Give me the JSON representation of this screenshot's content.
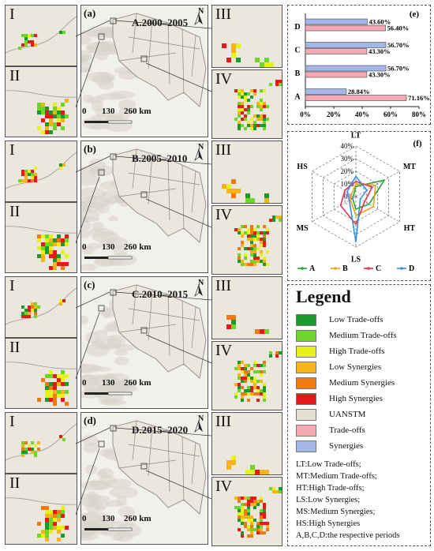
{
  "periods": [
    {
      "panel_letter": "(a)",
      "title": "A.2000–2005"
    },
    {
      "panel_letter": "(b)",
      "title": "B.2005–2010"
    },
    {
      "panel_letter": "(c)",
      "title": "C.2010–2015"
    },
    {
      "panel_letter": "(d)",
      "title": "D.2015–2020"
    }
  ],
  "insets": {
    "i": "I",
    "ii": "II",
    "iii": "III",
    "iv": "IV"
  },
  "north": "N",
  "scale": {
    "t0": "0",
    "t1": "130",
    "t2": "260 km"
  },
  "colors": {
    "low_tradeoffs": "#1a9a2a",
    "medium_tradeoffs": "#6ed62a",
    "high_tradeoffs": "#e6f21a",
    "low_synergies": "#f5b41a",
    "medium_synergies": "#f07a10",
    "high_synergies": "#e81818",
    "uanstm": "#e4e0d0",
    "tradeoffs": "#f4a9b4",
    "synergies": "#a3b8e8"
  },
  "legend": {
    "title": "Legend",
    "items": [
      {
        "label": "Low Trade-offs",
        "color": "#1a9a2a"
      },
      {
        "label": "Medium Trade-offs",
        "color": "#6ed62a"
      },
      {
        "label": "High Trade-offs",
        "color": "#e6f21a"
      },
      {
        "label": "Low Synergies",
        "color": "#f5b41a"
      },
      {
        "label": "Medium Synergies",
        "color": "#f07a10"
      },
      {
        "label": "High Synergies",
        "color": "#e81818"
      },
      {
        "label": "UANSTM",
        "color": "#e4e0d0"
      },
      {
        "label": "Trade-offs",
        "color": "#f4a9b4"
      },
      {
        "label": "Synergies",
        "color": "#a3b8e8"
      }
    ],
    "abbreviations": [
      "LT:Low Trade-offs;",
      "MT:Medium Trade-offs;",
      "HT:High Trade-offs;",
      "LS:Low Synergies;",
      "MS:Medium Synergies;",
      "HS:High Synergies",
      "A,B,C,D:the respective periods"
    ]
  },
  "chart_data": [
    {
      "type": "bar",
      "panel": "(e)",
      "orientation": "horizontal",
      "categories": [
        "D",
        "C",
        "B",
        "A"
      ],
      "series": [
        {
          "color": "#a3b8e8",
          "values": [
            43.6,
            56.7,
            56.7,
            28.84
          ],
          "labels": [
            "43.60%",
            "56.70%",
            "56.70%",
            "28.84%"
          ]
        },
        {
          "color": "#f4a9b4",
          "values": [
            56.4,
            43.3,
            43.3,
            71.16
          ],
          "labels": [
            "56.40%",
            "43.30%",
            "43.30%",
            "71.16%"
          ]
        }
      ],
      "xlim": [
        0,
        80
      ],
      "xticks": [
        "0%",
        "20%",
        "40%",
        "60%",
        "80%"
      ],
      "grid": false
    },
    {
      "type": "radar",
      "panel": "(f)",
      "axes": [
        "LT",
        "MT",
        "HT",
        "LS",
        "MS",
        "HS"
      ],
      "rticks": [
        "0%",
        "10%",
        "20%",
        "30%",
        "40%"
      ],
      "rlim": [
        0,
        40
      ],
      "series": [
        {
          "name": "A",
          "color": "#2aa23a",
          "values": [
            8,
            26,
            12,
            10,
            3,
            2
          ]
        },
        {
          "name": "B",
          "color": "#f0a020",
          "values": [
            10,
            18,
            16,
            15,
            5,
            4
          ]
        },
        {
          "name": "C",
          "color": "#e83050",
          "values": [
            12,
            15,
            8,
            22,
            14,
            10
          ]
        },
        {
          "name": "D",
          "color": "#3a8ee0",
          "values": [
            16,
            10,
            4,
            36,
            6,
            8
          ]
        }
      ],
      "legend_position": "bottom"
    }
  ]
}
